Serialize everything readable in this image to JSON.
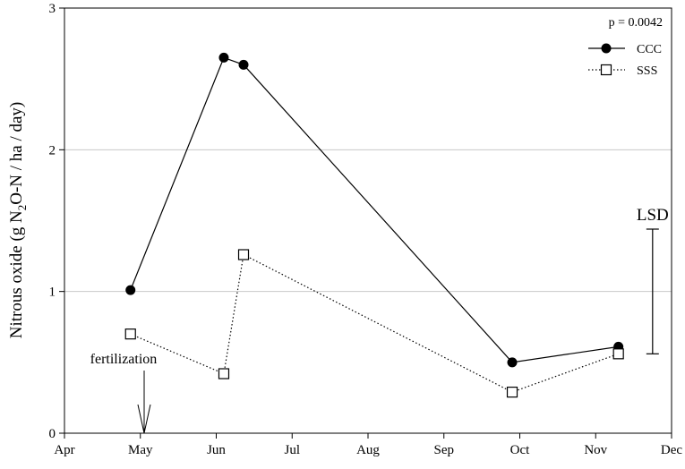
{
  "chart_data": {
    "type": "line",
    "xlabel": "",
    "ylabel_parts": {
      "pre": "Nitrous oxide (g N",
      "sub": "2",
      "post": "O-N / ha / day)"
    },
    "x_ticks": [
      "Apr",
      "May",
      "Jun",
      "Jul",
      "Aug",
      "Sep",
      "Oct",
      "Nov",
      "Dec"
    ],
    "x_range_months": [
      0,
      8
    ],
    "y_ticks": [
      "0",
      "1",
      "2",
      "3"
    ],
    "ylim": [
      0,
      3
    ],
    "grid_lines_y": [
      1,
      2
    ],
    "legend_position": "top-right",
    "stat_label": "p = 0.0042",
    "series": [
      {
        "name": "CCC",
        "marker": "filled-circle",
        "line": "solid",
        "x": [
          0.87,
          2.1,
          2.36,
          5.9,
          7.3
        ],
        "y": [
          1.01,
          2.65,
          2.6,
          0.5,
          0.61
        ]
      },
      {
        "name": "SSS",
        "marker": "open-square",
        "line": "dotted",
        "x": [
          0.87,
          2.1,
          2.36,
          5.9,
          7.3
        ],
        "y": [
          0.7,
          0.42,
          1.26,
          0.29,
          0.56
        ]
      }
    ],
    "lsd": {
      "label": "LSD",
      "x": 7.75,
      "y_low": 0.56,
      "y_high": 1.44
    },
    "annotation": {
      "text": "fertilization",
      "arrow_x": 1.05
    }
  }
}
